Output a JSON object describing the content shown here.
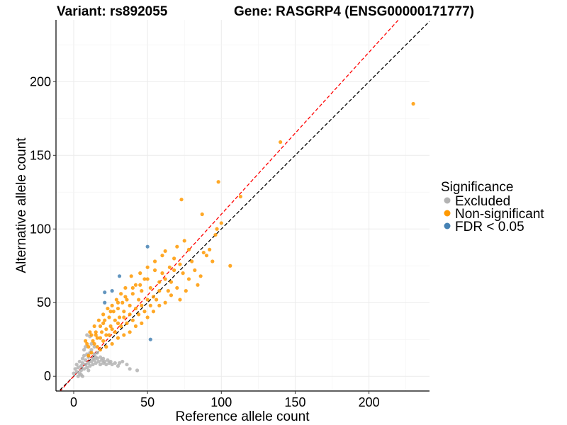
{
  "chart_data": {
    "type": "scatter",
    "title_variant": "Variant: rs892055",
    "title_gene": "Gene: RASGRP4 (ENSG00000171777)",
    "xlabel": "Reference allele count",
    "ylabel": "Alternative allele count",
    "xlim": [
      -12,
      241
    ],
    "ylim": [
      -10,
      242
    ],
    "xticks": [
      0,
      50,
      100,
      150,
      200
    ],
    "yticks": [
      0,
      50,
      100,
      150,
      200
    ],
    "grid": true,
    "legend": {
      "title": "Significance",
      "position": "right",
      "entries": [
        {
          "label": "Excluded",
          "color": "#b3b3b3"
        },
        {
          "label": "Non-significant",
          "color": "#ff9900"
        },
        {
          "label": "FDR < 0.05",
          "color": "#4682b4"
        }
      ]
    },
    "reference_lines": [
      {
        "slope": 1.0,
        "intercept": 0,
        "color": "#000000",
        "style": "dashed"
      },
      {
        "slope": 1.1,
        "intercept": 0,
        "color": "#ff0000",
        "style": "dashed"
      }
    ],
    "series": [
      {
        "name": "Excluded",
        "color": "#b3b3b3",
        "points": [
          [
            0,
            2
          ],
          [
            1,
            5
          ],
          [
            2,
            3
          ],
          [
            2,
            8
          ],
          [
            3,
            6
          ],
          [
            4,
            2
          ],
          [
            4,
            10
          ],
          [
            5,
            4
          ],
          [
            5,
            7
          ],
          [
            6,
            9
          ],
          [
            6,
            12
          ],
          [
            7,
            5
          ],
          [
            7,
            14
          ],
          [
            8,
            8
          ],
          [
            8,
            11
          ],
          [
            9,
            6
          ],
          [
            9,
            15
          ],
          [
            10,
            9
          ],
          [
            10,
            13
          ],
          [
            11,
            7
          ],
          [
            11,
            16
          ],
          [
            12,
            10
          ],
          [
            12,
            18
          ],
          [
            13,
            12
          ],
          [
            13,
            8
          ],
          [
            14,
            15
          ],
          [
            14,
            11
          ],
          [
            15,
            13
          ],
          [
            15,
            9
          ],
          [
            16,
            12
          ],
          [
            16,
            16
          ],
          [
            17,
            10
          ],
          [
            18,
            13
          ],
          [
            18,
            8
          ],
          [
            19,
            11
          ],
          [
            20,
            12
          ],
          [
            20,
            9
          ],
          [
            21,
            10
          ],
          [
            22,
            8
          ],
          [
            23,
            11
          ],
          [
            24,
            9
          ],
          [
            25,
            10
          ],
          [
            26,
            8
          ],
          [
            28,
            9
          ],
          [
            30,
            7
          ],
          [
            31,
            9
          ],
          [
            33,
            10
          ],
          [
            36,
            8
          ],
          [
            9,
            28
          ],
          [
            11,
            27
          ],
          [
            38,
            5
          ],
          [
            43,
            4
          ],
          [
            5,
            1
          ],
          [
            3,
            0
          ],
          [
            6,
            0
          ],
          [
            10,
            4
          ],
          [
            7,
            18
          ],
          [
            8,
            20
          ],
          [
            12,
            22
          ],
          [
            14,
            20
          ]
        ]
      },
      {
        "name": "Non-significant",
        "color": "#ff9900",
        "points": [
          [
            230,
            185
          ],
          [
            140,
            159
          ],
          [
            98,
            132
          ],
          [
            113,
            122
          ],
          [
            73,
            120
          ],
          [
            87,
            110
          ],
          [
            100,
            104
          ],
          [
            97,
            100
          ],
          [
            106,
            75
          ],
          [
            90,
            82
          ],
          [
            86,
            68
          ],
          [
            80,
            78
          ],
          [
            78,
            86
          ],
          [
            75,
            92
          ],
          [
            70,
            88
          ],
          [
            68,
            80
          ],
          [
            65,
            74
          ],
          [
            62,
            85
          ],
          [
            60,
            70
          ],
          [
            58,
            64
          ],
          [
            55,
            78
          ],
          [
            52,
            60
          ],
          [
            50,
            74
          ],
          [
            48,
            66
          ],
          [
            46,
            58
          ],
          [
            45,
            70
          ],
          [
            44,
            52
          ],
          [
            42,
            62
          ],
          [
            40,
            56
          ],
          [
            39,
            68
          ],
          [
            38,
            48
          ],
          [
            36,
            52
          ],
          [
            35,
            60
          ],
          [
            34,
            44
          ],
          [
            33,
            50
          ],
          [
            32,
            56
          ],
          [
            31,
            40
          ],
          [
            30,
            46
          ],
          [
            29,
            52
          ],
          [
            28,
            38
          ],
          [
            27,
            44
          ],
          [
            26,
            48
          ],
          [
            25,
            34
          ],
          [
            24,
            40
          ],
          [
            23,
            46
          ],
          [
            22,
            32
          ],
          [
            21,
            38
          ],
          [
            20,
            42
          ],
          [
            19,
            30
          ],
          [
            18,
            34
          ],
          [
            17,
            38
          ],
          [
            16,
            26
          ],
          [
            15,
            30
          ],
          [
            14,
            34
          ],
          [
            13,
            24
          ],
          [
            12,
            28
          ],
          [
            11,
            30
          ],
          [
            10,
            20
          ],
          [
            9,
            22
          ],
          [
            8,
            24
          ],
          [
            70,
            60
          ],
          [
            66,
            55
          ],
          [
            62,
            50
          ],
          [
            58,
            48
          ],
          [
            54,
            44
          ],
          [
            50,
            40
          ],
          [
            46,
            36
          ],
          [
            42,
            34
          ],
          [
            38,
            30
          ],
          [
            34,
            28
          ],
          [
            30,
            26
          ],
          [
            26,
            22
          ],
          [
            22,
            20
          ],
          [
            18,
            18
          ],
          [
            74,
            70
          ],
          [
            78,
            66
          ],
          [
            82,
            72
          ],
          [
            84,
            62
          ],
          [
            76,
            58
          ],
          [
            72,
            52
          ],
          [
            64,
            58
          ],
          [
            56,
            52
          ],
          [
            52,
            48
          ],
          [
            48,
            44
          ],
          [
            44,
            42
          ],
          [
            40,
            38
          ],
          [
            36,
            36
          ],
          [
            32,
            34
          ],
          [
            28,
            30
          ],
          [
            24,
            28
          ],
          [
            20,
            24
          ],
          [
            16,
            20
          ],
          [
            60,
            82
          ],
          [
            55,
            72
          ],
          [
            50,
            66
          ],
          [
            45,
            62
          ],
          [
            40,
            60
          ],
          [
            35,
            54
          ],
          [
            30,
            50
          ],
          [
            25,
            44
          ],
          [
            20,
            36
          ],
          [
            15,
            28
          ],
          [
            66,
            64
          ],
          [
            68,
            72
          ],
          [
            72,
            76
          ],
          [
            62,
            66
          ],
          [
            58,
            58
          ],
          [
            54,
            54
          ],
          [
            50,
            52
          ],
          [
            46,
            48
          ],
          [
            42,
            46
          ],
          [
            38,
            42
          ],
          [
            34,
            40
          ],
          [
            30,
            36
          ],
          [
            26,
            32
          ],
          [
            22,
            28
          ],
          [
            18,
            26
          ],
          [
            14,
            22
          ],
          [
            12,
            16
          ],
          [
            10,
            14
          ],
          [
            88,
            84
          ],
          [
            92,
            86
          ],
          [
            94,
            78
          ],
          [
            96,
            96
          ]
        ]
      },
      {
        "name": "FDR < 0.05",
        "color": "#4682b4",
        "points": [
          [
            50,
            88
          ],
          [
            31,
            68
          ],
          [
            26,
            58
          ],
          [
            21,
            57
          ],
          [
            21,
            50
          ],
          [
            52,
            25
          ]
        ]
      }
    ]
  }
}
